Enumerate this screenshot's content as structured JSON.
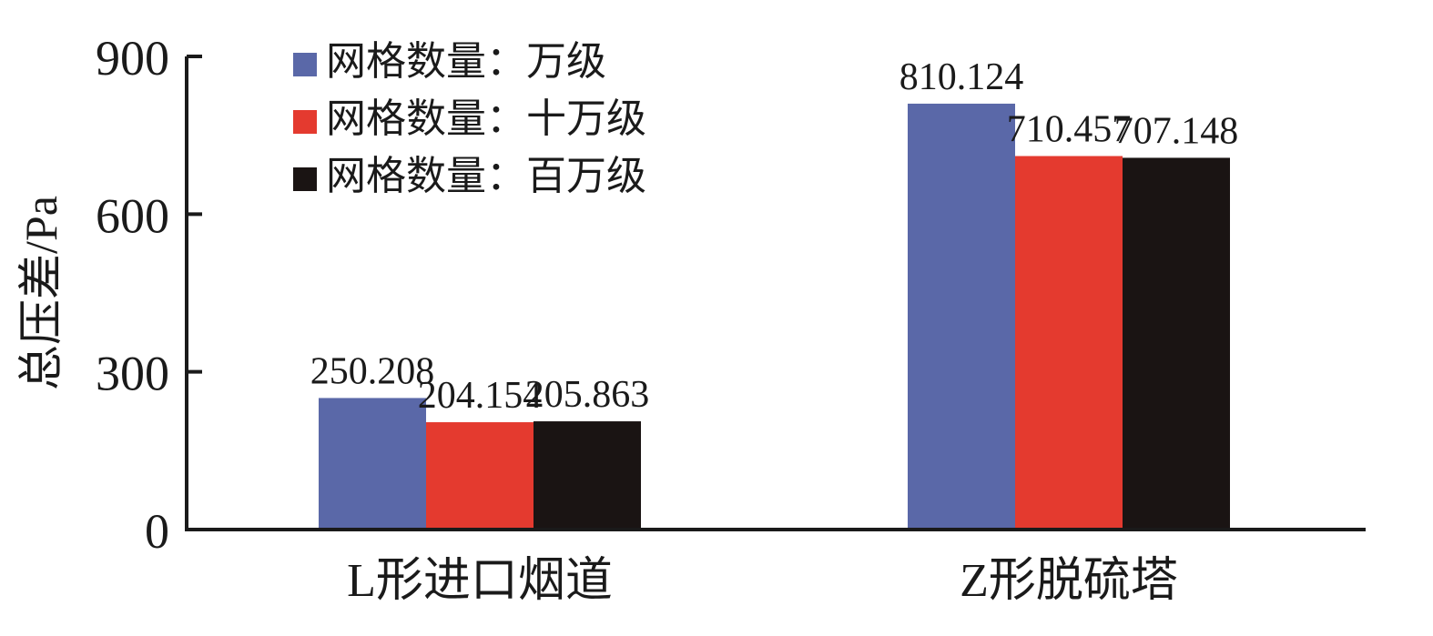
{
  "colors": {
    "series_1": "#5a68a8",
    "series_2": "#e43a2f",
    "series_3": "#1a1413",
    "axis": "#1a1a1a"
  },
  "chart_data": {
    "type": "bar",
    "categories": [
      "L形进口烟道",
      "Z形脱硫塔"
    ],
    "series": [
      {
        "name": "网格数量：万级",
        "values": [
          250.208,
          810.124
        ],
        "labels": [
          "250.208",
          "810.124"
        ]
      },
      {
        "name": "网格数量：十万级",
        "values": [
          204.154,
          710.457
        ],
        "labels": [
          "204.154",
          "710.457"
        ]
      },
      {
        "name": "网格数量：百万级",
        "values": [
          205.863,
          707.148
        ],
        "labels": [
          "205.863",
          "707.148"
        ]
      }
    ],
    "ylabel": "总压差/Pa",
    "xlabel": "",
    "ylim": [
      0,
      900
    ],
    "yticks": [
      0,
      300,
      600,
      900
    ],
    "ytick_labels": [
      "0",
      "300",
      "600",
      "900"
    ],
    "legend_position": "top-left",
    "grid": false
  }
}
